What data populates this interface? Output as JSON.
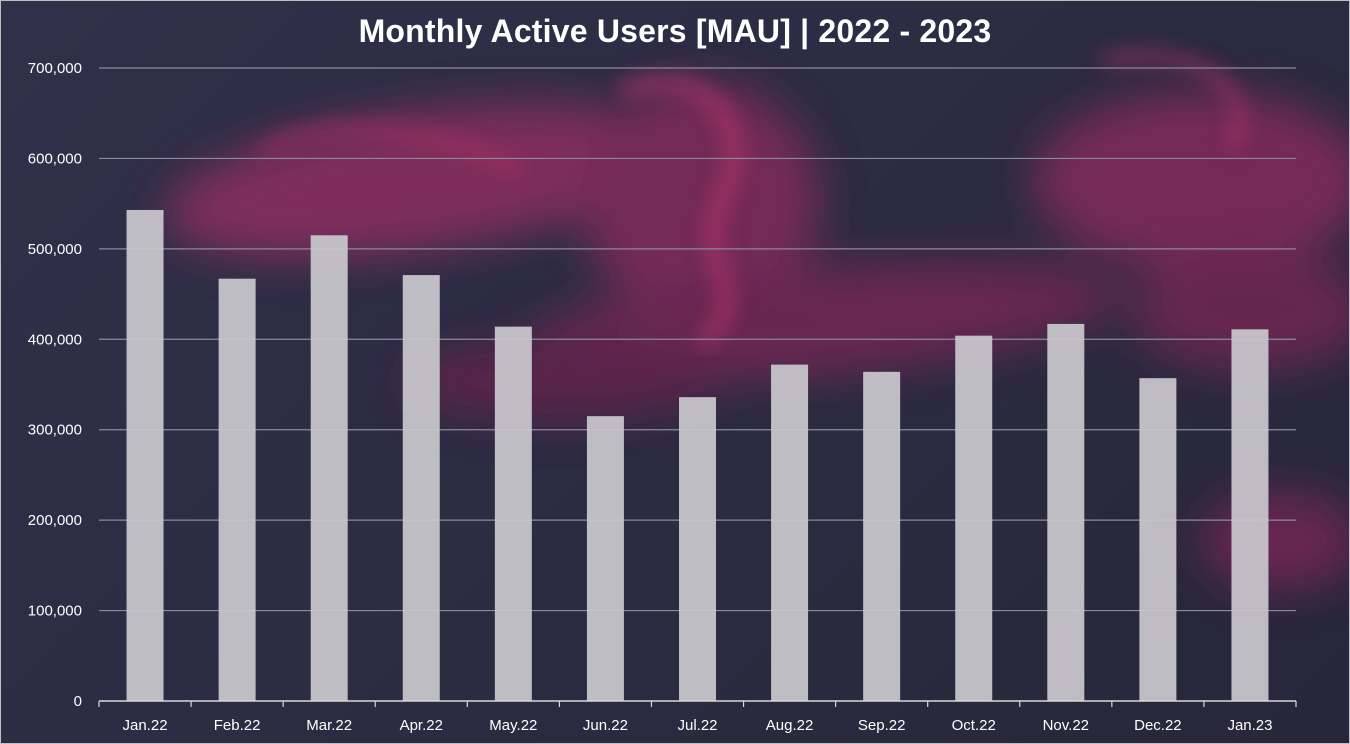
{
  "chart_data": {
    "type": "bar",
    "title": "Monthly Active Users [MAU] | 2022 - 2023",
    "xlabel": "",
    "ylabel": "",
    "categories": [
      "Jan.22",
      "Feb.22",
      "Mar.22",
      "Apr.22",
      "May.22",
      "Jun.22",
      "Jul.22",
      "Aug.22",
      "Sep.22",
      "Oct.22",
      "Nov.22",
      "Dec.22",
      "Jan.23"
    ],
    "values": [
      543000,
      467000,
      515000,
      471000,
      414000,
      315000,
      336000,
      372000,
      364000,
      404000,
      417000,
      357000,
      411000
    ],
    "ylim": [
      0,
      700000
    ],
    "yticks": [
      0,
      100000,
      200000,
      300000,
      400000,
      500000,
      600000,
      700000
    ],
    "ytick_labels": [
      "0",
      "100,000",
      "200,000",
      "300,000",
      "400,000",
      "500,000",
      "600,000",
      "700,000"
    ],
    "grid": true,
    "legend": "none",
    "colors": {
      "bar": "#c9c8cc",
      "grid": "#8a8a98",
      "axis": "#d8d8d8",
      "text": "#ffffff",
      "accent": "#b0336a"
    }
  }
}
